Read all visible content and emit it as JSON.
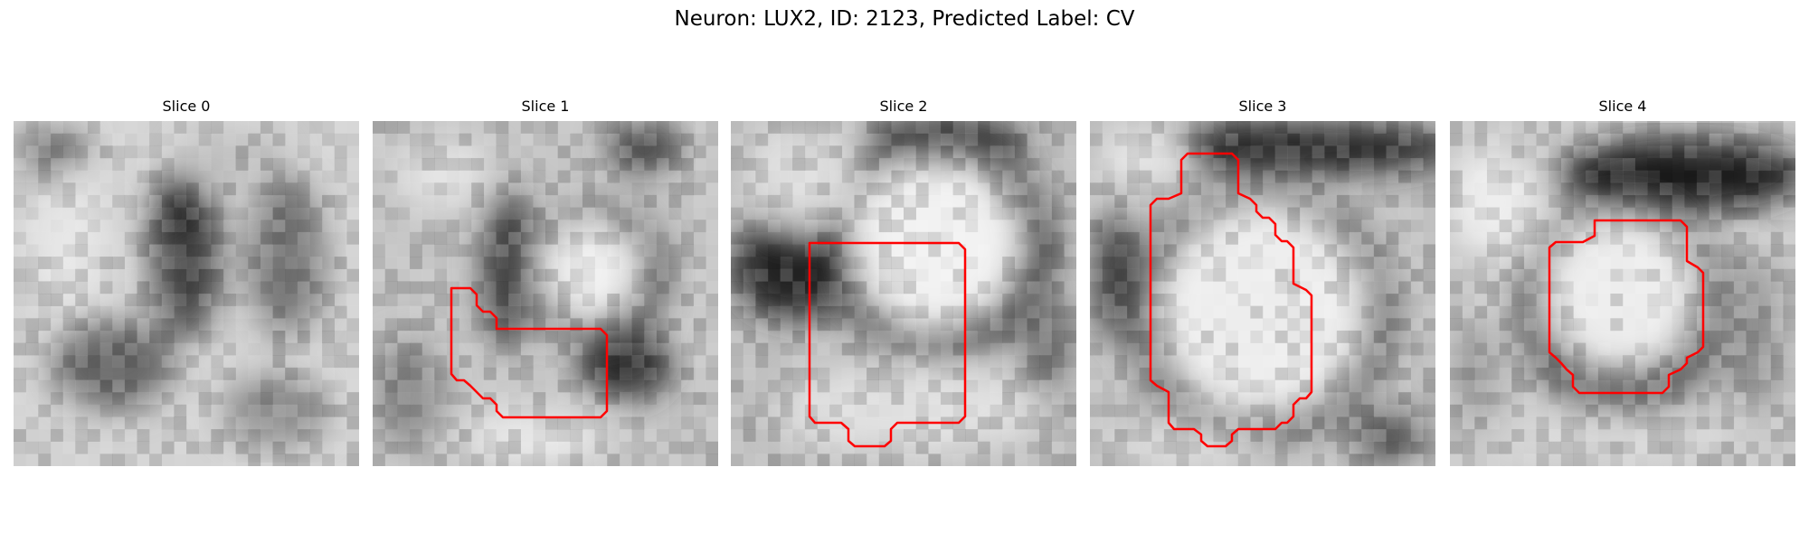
{
  "suptitle": "Neuron: LUX2, ID: 2123, Predicted Label: CV",
  "panels": [
    {
      "title": "Slice 0",
      "has_contour": false
    },
    {
      "title": "Slice 1",
      "has_contour": true
    },
    {
      "title": "Slice 2",
      "has_contour": true
    },
    {
      "title": "Slice 3",
      "has_contour": true
    },
    {
      "title": "Slice 4",
      "has_contour": true
    }
  ],
  "colors": {
    "contour": "#ff0000",
    "background": "#ffffff"
  }
}
